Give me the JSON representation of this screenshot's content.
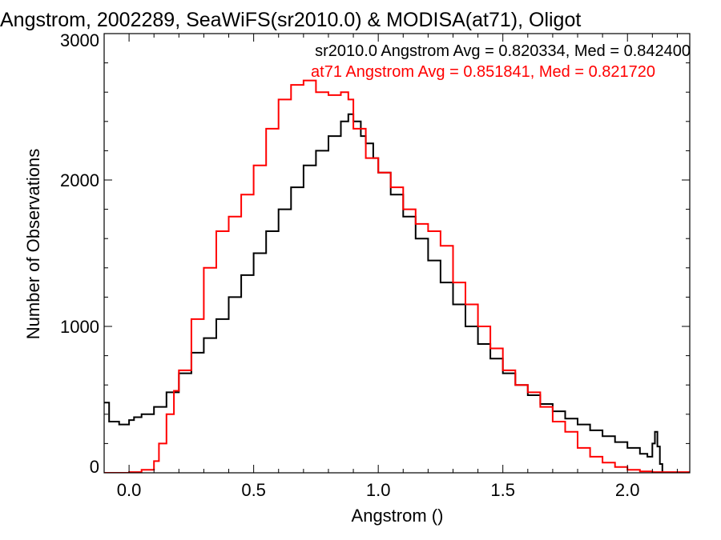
{
  "chart_data": {
    "type": "line",
    "title": "Angstrom, 2002289, SeaWiFS(sr2010.0) & MODISA(at71), Oligot",
    "xlabel": "Angstrom ()",
    "ylabel": "Number of Observations",
    "xlim": [
      -0.1,
      2.25
    ],
    "ylim": [
      0,
      3000
    ],
    "x_ticks": [
      0.0,
      0.5,
      1.0,
      1.5,
      2.0
    ],
    "x_tick_labels": [
      "0.0",
      "0.5",
      "1.0",
      "1.5",
      "2.0"
    ],
    "y_ticks": [
      0,
      1000,
      2000,
      3000
    ],
    "y_tick_labels": [
      "0",
      "1000",
      "2000",
      "3000"
    ],
    "grid": false,
    "legend_placement": "top-right",
    "series": [
      {
        "name": "sr2010.0 Angstrom Avg = 0.820334, Med = 0.842400",
        "color": "#000000",
        "x": [
          -0.1,
          -0.08,
          -0.04,
          0.0,
          0.02,
          0.05,
          0.1,
          0.15,
          0.2,
          0.25,
          0.3,
          0.35,
          0.4,
          0.45,
          0.5,
          0.55,
          0.6,
          0.65,
          0.7,
          0.75,
          0.8,
          0.85,
          0.88,
          0.9,
          0.93,
          0.95,
          0.98,
          1.0,
          1.05,
          1.1,
          1.15,
          1.2,
          1.25,
          1.3,
          1.35,
          1.4,
          1.45,
          1.5,
          1.55,
          1.6,
          1.65,
          1.7,
          1.75,
          1.8,
          1.85,
          1.9,
          1.95,
          2.0,
          2.05,
          2.08,
          2.1,
          2.11,
          2.12,
          2.13,
          2.14
        ],
        "y": [
          480,
          350,
          330,
          360,
          380,
          400,
          450,
          550,
          680,
          820,
          920,
          1050,
          1200,
          1350,
          1500,
          1650,
          1800,
          1950,
          2100,
          2200,
          2300,
          2400,
          2450,
          2400,
          2300,
          2250,
          2150,
          2050,
          1900,
          1750,
          1600,
          1450,
          1300,
          1150,
          1000,
          880,
          780,
          680,
          600,
          530,
          470,
          420,
          370,
          330,
          290,
          250,
          210,
          170,
          130,
          110,
          200,
          280,
          180,
          60,
          0
        ]
      },
      {
        "name": "at71 Angstrom Avg = 0.851841, Med = 0.821720",
        "color": "#ff0000",
        "x": [
          -0.1,
          0.0,
          0.05,
          0.1,
          0.12,
          0.15,
          0.18,
          0.2,
          0.25,
          0.3,
          0.35,
          0.4,
          0.45,
          0.5,
          0.55,
          0.6,
          0.65,
          0.7,
          0.75,
          0.8,
          0.85,
          0.88,
          0.9,
          0.95,
          1.0,
          1.05,
          1.1,
          1.15,
          1.2,
          1.25,
          1.3,
          1.35,
          1.4,
          1.45,
          1.5,
          1.55,
          1.6,
          1.65,
          1.7,
          1.75,
          1.8,
          1.85,
          1.9,
          1.95,
          2.0,
          2.05,
          2.1,
          2.25
        ],
        "y": [
          0,
          5,
          20,
          80,
          200,
          400,
          560,
          700,
          1050,
          1400,
          1650,
          1750,
          1900,
          2100,
          2350,
          2550,
          2650,
          2680,
          2600,
          2580,
          2600,
          2550,
          2350,
          2150,
          2050,
          1950,
          1800,
          1700,
          1650,
          1550,
          1300,
          1150,
          1000,
          850,
          700,
          600,
          550,
          450,
          350,
          280,
          170,
          110,
          70,
          40,
          20,
          10,
          5,
          0
        ]
      }
    ]
  }
}
